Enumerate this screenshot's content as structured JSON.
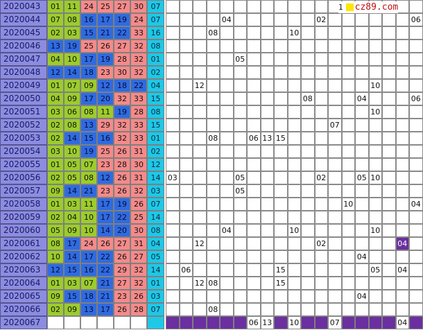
{
  "site": {
    "logo_text": "cz89.com",
    "logo_prefix": "1"
  },
  "colors": {
    "period_bg": "#8c8ce0",
    "green": "#9ccc2c",
    "blue": "#2f6be0",
    "red": "#f58a8a",
    "cyan": "#1ec8e6",
    "purple": "#6b2fa0"
  },
  "rows": [
    {
      "period": "2020043",
      "balls": [
        "01",
        "11",
        "24",
        "25",
        "27",
        "30"
      ],
      "colors": [
        "g",
        "g",
        "r",
        "r",
        "r",
        "r"
      ],
      "special": "07",
      "marks": []
    },
    {
      "period": "2020044",
      "balls": [
        "07",
        "08",
        "16",
        "17",
        "19",
        "24"
      ],
      "colors": [
        "g",
        "g",
        "b",
        "b",
        "b",
        "r"
      ],
      "special": "07",
      "marks": [
        {
          "col": 4,
          "val": "04"
        },
        {
          "col": 11,
          "val": "02"
        },
        {
          "col": 18,
          "val": "06"
        }
      ]
    },
    {
      "period": "2020045",
      "balls": [
        "02",
        "03",
        "15",
        "21",
        "22",
        "33"
      ],
      "colors": [
        "g",
        "g",
        "b",
        "b",
        "b",
        "r"
      ],
      "special": "16",
      "marks": [
        {
          "col": 3,
          "val": "08"
        },
        {
          "col": 9,
          "val": "10"
        }
      ]
    },
    {
      "period": "2020046",
      "balls": [
        "13",
        "19",
        "25",
        "26",
        "27",
        "32"
      ],
      "colors": [
        "b",
        "b",
        "r",
        "r",
        "r",
        "r"
      ],
      "special": "08",
      "marks": []
    },
    {
      "period": "2020047",
      "balls": [
        "04",
        "10",
        "17",
        "19",
        "28",
        "32"
      ],
      "colors": [
        "g",
        "g",
        "b",
        "b",
        "r",
        "r"
      ],
      "special": "01",
      "marks": [
        {
          "col": 5,
          "val": "05"
        }
      ]
    },
    {
      "period": "2020048",
      "balls": [
        "12",
        "14",
        "18",
        "23",
        "30",
        "32"
      ],
      "colors": [
        "b",
        "b",
        "b",
        "r",
        "r",
        "r"
      ],
      "special": "02",
      "marks": []
    },
    {
      "period": "2020049",
      "balls": [
        "01",
        "07",
        "09",
        "12",
        "18",
        "22"
      ],
      "colors": [
        "g",
        "g",
        "g",
        "b",
        "b",
        "b"
      ],
      "special": "04",
      "marks": [
        {
          "col": 2,
          "val": "12"
        },
        {
          "col": 15,
          "val": "10"
        }
      ]
    },
    {
      "period": "2020050",
      "balls": [
        "04",
        "09",
        "17",
        "20",
        "32",
        "33"
      ],
      "colors": [
        "g",
        "g",
        "b",
        "b",
        "r",
        "r"
      ],
      "special": "15",
      "marks": [
        {
          "col": 10,
          "val": "08"
        },
        {
          "col": 14,
          "val": "04"
        },
        {
          "col": 18,
          "val": "06"
        }
      ]
    },
    {
      "period": "2020051",
      "balls": [
        "03",
        "06",
        "08",
        "11",
        "19",
        "28"
      ],
      "colors": [
        "g",
        "g",
        "g",
        "g",
        "b",
        "r"
      ],
      "special": "08",
      "marks": [
        {
          "col": 15,
          "val": "10"
        }
      ]
    },
    {
      "period": "2020052",
      "balls": [
        "02",
        "08",
        "13",
        "29",
        "32",
        "33"
      ],
      "colors": [
        "g",
        "g",
        "b",
        "r",
        "r",
        "r"
      ],
      "special": "15",
      "marks": [
        {
          "col": 12,
          "val": "07"
        }
      ]
    },
    {
      "period": "2020053",
      "balls": [
        "02",
        "14",
        "15",
        "16",
        "32",
        "33"
      ],
      "colors": [
        "g",
        "b",
        "b",
        "b",
        "r",
        "r"
      ],
      "special": "01",
      "marks": [
        {
          "col": 3,
          "val": "08"
        },
        {
          "col": 6,
          "val": "06"
        },
        {
          "col": 7,
          "val": "13"
        },
        {
          "col": 8,
          "val": "15"
        }
      ]
    },
    {
      "period": "2020054",
      "balls": [
        "03",
        "10",
        "19",
        "25",
        "26",
        "31"
      ],
      "colors": [
        "g",
        "g",
        "b",
        "r",
        "r",
        "r"
      ],
      "special": "02",
      "marks": []
    },
    {
      "period": "2020055",
      "balls": [
        "01",
        "05",
        "07",
        "23",
        "28",
        "30"
      ],
      "colors": [
        "g",
        "g",
        "g",
        "r",
        "r",
        "r"
      ],
      "special": "12",
      "marks": []
    },
    {
      "period": "2020056",
      "balls": [
        "02",
        "05",
        "08",
        "12",
        "26",
        "31"
      ],
      "colors": [
        "g",
        "g",
        "g",
        "b",
        "r",
        "r"
      ],
      "special": "14",
      "marks": [
        {
          "col": 0,
          "val": "03"
        },
        {
          "col": 5,
          "val": "05"
        },
        {
          "col": 11,
          "val": "02"
        },
        {
          "col": 14,
          "val": "05"
        },
        {
          "col": 15,
          "val": "10"
        }
      ]
    },
    {
      "period": "2020057",
      "balls": [
        "09",
        "14",
        "21",
        "23",
        "26",
        "32"
      ],
      "colors": [
        "g",
        "b",
        "b",
        "r",
        "r",
        "r"
      ],
      "special": "03",
      "marks": [
        {
          "col": 5,
          "val": "05"
        }
      ]
    },
    {
      "period": "2020058",
      "balls": [
        "01",
        "03",
        "11",
        "17",
        "19",
        "26"
      ],
      "colors": [
        "g",
        "g",
        "g",
        "b",
        "b",
        "r"
      ],
      "special": "07",
      "marks": [
        {
          "col": 13,
          "val": "10"
        },
        {
          "col": 18,
          "val": "04"
        }
      ]
    },
    {
      "period": "2020059",
      "balls": [
        "02",
        "04",
        "10",
        "17",
        "22",
        "25"
      ],
      "colors": [
        "g",
        "g",
        "g",
        "b",
        "b",
        "r"
      ],
      "special": "14",
      "marks": []
    },
    {
      "period": "2020060",
      "balls": [
        "05",
        "09",
        "10",
        "14",
        "20",
        "30"
      ],
      "colors": [
        "g",
        "g",
        "g",
        "b",
        "b",
        "r"
      ],
      "special": "08",
      "marks": [
        {
          "col": 4,
          "val": "04"
        },
        {
          "col": 9,
          "val": "10"
        },
        {
          "col": 15,
          "val": "10"
        }
      ]
    },
    {
      "period": "2020061",
      "balls": [
        "08",
        "17",
        "24",
        "26",
        "27",
        "31"
      ],
      "colors": [
        "g",
        "b",
        "r",
        "r",
        "r",
        "r"
      ],
      "special": "04",
      "marks": [
        {
          "col": 2,
          "val": "12"
        },
        {
          "col": 11,
          "val": "02"
        },
        {
          "col": 17,
          "val": "04",
          "hl": true
        }
      ]
    },
    {
      "period": "2020062",
      "balls": [
        "10",
        "14",
        "17",
        "22",
        "26",
        "27"
      ],
      "colors": [
        "g",
        "b",
        "b",
        "b",
        "r",
        "r"
      ],
      "special": "05",
      "marks": [
        {
          "col": 14,
          "val": "04"
        }
      ]
    },
    {
      "period": "2020063",
      "balls": [
        "12",
        "15",
        "16",
        "22",
        "29",
        "32"
      ],
      "colors": [
        "b",
        "b",
        "b",
        "b",
        "r",
        "r"
      ],
      "special": "14",
      "marks": [
        {
          "col": 1,
          "val": "06"
        },
        {
          "col": 8,
          "val": "15"
        },
        {
          "col": 15,
          "val": "05"
        },
        {
          "col": 17,
          "val": "04"
        }
      ]
    },
    {
      "period": "2020064",
      "balls": [
        "01",
        "03",
        "07",
        "21",
        "27",
        "32"
      ],
      "colors": [
        "g",
        "g",
        "g",
        "b",
        "r",
        "r"
      ],
      "special": "01",
      "marks": [
        {
          "col": 2,
          "val": "12"
        },
        {
          "col": 3,
          "val": "08"
        },
        {
          "col": 8,
          "val": "15"
        }
      ]
    },
    {
      "period": "2020065",
      "balls": [
        "09",
        "15",
        "18",
        "21",
        "23",
        "26"
      ],
      "colors": [
        "g",
        "b",
        "b",
        "b",
        "r",
        "r"
      ],
      "special": "03",
      "marks": [
        {
          "col": 14,
          "val": "04"
        }
      ]
    },
    {
      "period": "2020066",
      "balls": [
        "02",
        "09",
        "13",
        "17",
        "26",
        "28"
      ],
      "colors": [
        "g",
        "g",
        "b",
        "b",
        "r",
        "r"
      ],
      "special": "07",
      "marks": [
        {
          "col": 3,
          "val": "08"
        }
      ]
    }
  ],
  "last_row": {
    "period": "2020067",
    "marks": [
      {
        "col": 6,
        "val": "06"
      },
      {
        "col": 7,
        "val": "13"
      },
      {
        "col": 9,
        "val": "10"
      },
      {
        "col": 12,
        "val": "07"
      },
      {
        "col": 17,
        "val": "04"
      }
    ]
  }
}
